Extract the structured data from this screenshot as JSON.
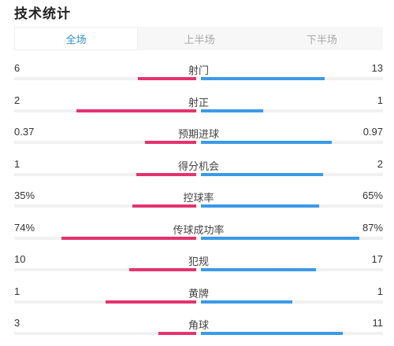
{
  "title": "技术统计",
  "colors": {
    "home": "#e5336f",
    "away": "#3a9ae8",
    "active_tab": "#2e8fd8"
  },
  "tabs": [
    {
      "label": "全场",
      "active": true
    },
    {
      "label": "上半场",
      "active": false
    },
    {
      "label": "下半场",
      "active": false
    }
  ],
  "stats": [
    {
      "label": "射门",
      "home": "6",
      "away": "13",
      "home_fill": 0.32,
      "away_fill": 0.68
    },
    {
      "label": "射正",
      "home": "2",
      "away": "1",
      "home_fill": 0.66,
      "away_fill": 0.34
    },
    {
      "label": "预期进球",
      "home": "0.37",
      "away": "0.97",
      "home_fill": 0.28,
      "away_fill": 0.72
    },
    {
      "label": "得分机会",
      "home": "1",
      "away": "2",
      "home_fill": 0.33,
      "away_fill": 0.67
    },
    {
      "label": "控球率",
      "home": "35%",
      "away": "65%",
      "home_fill": 0.35,
      "away_fill": 0.65
    },
    {
      "label": "传球成功率",
      "home": "74%",
      "away": "87%",
      "home_fill": 0.74,
      "away_fill": 0.87
    },
    {
      "label": "犯规",
      "home": "10",
      "away": "17",
      "home_fill": 0.37,
      "away_fill": 0.63
    },
    {
      "label": "黄牌",
      "home": "1",
      "away": "1",
      "home_fill": 0.5,
      "away_fill": 0.5
    },
    {
      "label": "角球",
      "home": "3",
      "away": "11",
      "home_fill": 0.21,
      "away_fill": 0.78
    }
  ]
}
